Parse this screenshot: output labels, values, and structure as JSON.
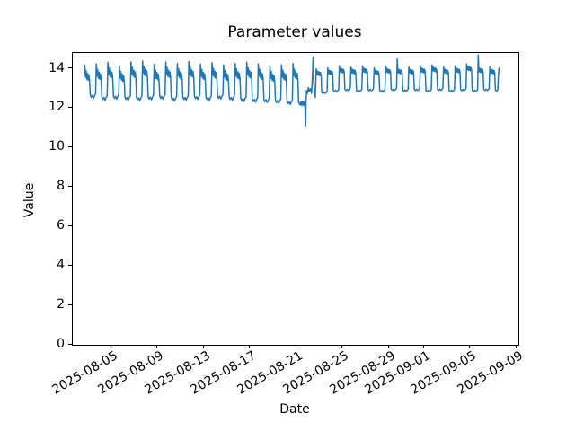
{
  "figure": {
    "background": "#ffffff"
  },
  "chart_data": {
    "type": "line",
    "title": "Parameter values",
    "xlabel": "Date",
    "ylabel": "Value",
    "line_color": "#1f77b4",
    "grid": false,
    "legend": "none",
    "ylim": [
      0,
      14.8
    ],
    "x_epoch": "2025-08-03",
    "xlim_days": [
      -1.35,
      37.15
    ],
    "yticks": [
      0,
      2,
      4,
      6,
      8,
      10,
      12,
      14
    ],
    "xticks": [
      {
        "day": 2,
        "label": "2025-08-05"
      },
      {
        "day": 6,
        "label": "2025-08-09"
      },
      {
        "day": 10,
        "label": "2025-08-13"
      },
      {
        "day": 14,
        "label": "2025-08-17"
      },
      {
        "day": 18,
        "label": "2025-08-21"
      },
      {
        "day": 22,
        "label": "2025-08-25"
      },
      {
        "day": 26,
        "label": "2025-08-29"
      },
      {
        "day": 29,
        "label": "2025-09-01"
      },
      {
        "day": 33,
        "label": "2025-09-05"
      },
      {
        "day": 37,
        "label": "2025-09-09"
      }
    ],
    "waveforms": {
      "A": [
        [
          -0.24,
          "P",
          0
        ],
        [
          -0.18,
          "H",
          -0.62
        ],
        [
          -0.12,
          "H",
          -0.28
        ],
        [
          -0.06,
          "H",
          -0.72
        ],
        [
          0,
          "H",
          -0.42
        ],
        [
          0.06,
          "H",
          -0.78
        ],
        [
          0.12,
          "H",
          -0.5
        ],
        [
          0.18,
          "H",
          -0.82
        ],
        [
          0.24,
          "T",
          0.12
        ],
        [
          0.32,
          "T",
          0
        ],
        [
          0.42,
          "T",
          0.1
        ],
        [
          0.52,
          "T",
          -0.04
        ],
        [
          0.6,
          "T",
          0.08
        ],
        [
          0.7,
          "T",
          0.18
        ]
      ],
      "B": [
        [
          -0.24,
          "P",
          0
        ],
        [
          -0.18,
          "H",
          -0.3
        ],
        [
          -0.12,
          "H",
          -0.12
        ],
        [
          -0.06,
          "H",
          -0.32
        ],
        [
          0,
          "H",
          -0.15
        ],
        [
          0.06,
          "H",
          -0.35
        ],
        [
          0.12,
          "H",
          -0.18
        ],
        [
          0.18,
          "H",
          -0.3
        ],
        [
          0.24,
          "T",
          0.05
        ],
        [
          0.34,
          "T",
          0
        ],
        [
          0.44,
          "T",
          0.06
        ],
        [
          0.54,
          "T",
          0
        ],
        [
          0.62,
          "T",
          0.04
        ],
        [
          0.7,
          "T",
          0.1
        ]
      ]
    },
    "days": [
      {
        "k": 0,
        "type": "A",
        "peak": 14.15,
        "trough": 12.5
      },
      {
        "k": 1,
        "type": "A",
        "peak": 14.2,
        "trough": 12.4
      },
      {
        "k": 2,
        "type": "A",
        "peak": 14.28,
        "trough": 12.45
      },
      {
        "k": 3,
        "type": "A",
        "peak": 14.1,
        "trough": 12.4
      },
      {
        "k": 4,
        "type": "A",
        "peak": 14.3,
        "trough": 12.38
      },
      {
        "k": 5,
        "type": "A",
        "peak": 14.35,
        "trough": 12.42
      },
      {
        "k": 6,
        "type": "A",
        "peak": 14.18,
        "trough": 12.45
      },
      {
        "k": 7,
        "type": "A",
        "peak": 14.3,
        "trough": 12.36
      },
      {
        "k": 8,
        "type": "A",
        "peak": 14.22,
        "trough": 12.4
      },
      {
        "k": 9,
        "type": "A",
        "peak": 14.32,
        "trough": 12.44
      },
      {
        "k": 10,
        "type": "A",
        "peak": 14.2,
        "trough": 12.4
      },
      {
        "k": 11,
        "type": "A",
        "peak": 14.26,
        "trough": 12.46
      },
      {
        "k": 12,
        "type": "A",
        "peak": 14.15,
        "trough": 12.4
      },
      {
        "k": 13,
        "type": "A",
        "peak": 14.22,
        "trough": 12.34
      },
      {
        "k": 14,
        "type": "A",
        "peak": 14.28,
        "trough": 12.3
      },
      {
        "k": 15,
        "type": "A",
        "peak": 14.2,
        "trough": 12.28
      },
      {
        "k": 16,
        "type": "A",
        "peak": 14.1,
        "trough": 12.24
      },
      {
        "k": 17,
        "type": "A",
        "peak": 14.16,
        "trough": 12.18
      },
      {
        "k": 18,
        "type": "A",
        "peak": 14.22,
        "trough": 12.1
      },
      {
        "k": 19,
        "type": "skip"
      },
      {
        "k": 20,
        "type": "B",
        "peak": 13.95,
        "trough": 12.7
      },
      {
        "k": 21,
        "type": "B",
        "peak": 14.0,
        "trough": 12.8
      },
      {
        "k": 22,
        "type": "B",
        "peak": 14.1,
        "trough": 12.85
      },
      {
        "k": 23,
        "type": "B",
        "peak": 14.05,
        "trough": 12.8
      },
      {
        "k": 24,
        "type": "B",
        "peak": 14.1,
        "trough": 12.84
      },
      {
        "k": 25,
        "type": "B",
        "peak": 14.0,
        "trough": 12.8
      },
      {
        "k": 26,
        "type": "B",
        "peak": 14.08,
        "trough": 12.86
      },
      {
        "k": 27,
        "type": "B",
        "peak": 14.45,
        "p2": 14.05,
        "trough": 12.82
      },
      {
        "k": 28,
        "type": "B",
        "peak": 14.05,
        "trough": 12.85
      },
      {
        "k": 29,
        "type": "B",
        "peak": 14.1,
        "trough": 12.8
      },
      {
        "k": 30,
        "type": "B",
        "peak": 14.15,
        "trough": 12.86
      },
      {
        "k": 31,
        "type": "B",
        "peak": 14.05,
        "trough": 12.8
      },
      {
        "k": 32,
        "type": "B",
        "peak": 14.1,
        "trough": 12.84
      },
      {
        "k": 33,
        "type": "B",
        "peak": 14.2,
        "trough": 12.8
      },
      {
        "k": 34,
        "type": "B",
        "peak": 14.65,
        "p2": 14.1,
        "trough": 12.85
      },
      {
        "k": 35,
        "type": "B",
        "peak": 14.05,
        "trough": 12.82
      }
    ],
    "anomaly_window_days": [
      18.24,
      19.72
    ],
    "anomaly_points": [
      [
        18.28,
        12.22
      ],
      [
        18.36,
        12.12
      ],
      [
        18.44,
        12.3
      ],
      [
        18.52,
        12.08
      ],
      [
        18.6,
        12.32
      ],
      [
        18.68,
        12.1
      ],
      [
        18.74,
        12.28
      ],
      [
        18.79,
        12.0
      ],
      [
        18.82,
        11.08
      ],
      [
        18.85,
        11.05
      ],
      [
        18.88,
        12.3
      ],
      [
        18.93,
        12.85
      ],
      [
        19.0,
        12.7
      ],
      [
        19.08,
        13.0
      ],
      [
        19.16,
        12.8
      ],
      [
        19.26,
        12.95
      ],
      [
        19.36,
        12.7
      ],
      [
        19.44,
        13.6
      ],
      [
        19.49,
        14.55
      ],
      [
        19.54,
        13.5
      ],
      [
        19.6,
        12.6
      ],
      [
        19.68,
        12.5
      ]
    ],
    "tail_points": [
      [
        35.5,
        13.55
      ],
      [
        35.54,
        13.98
      ]
    ],
    "data_end_day": 35.45
  }
}
